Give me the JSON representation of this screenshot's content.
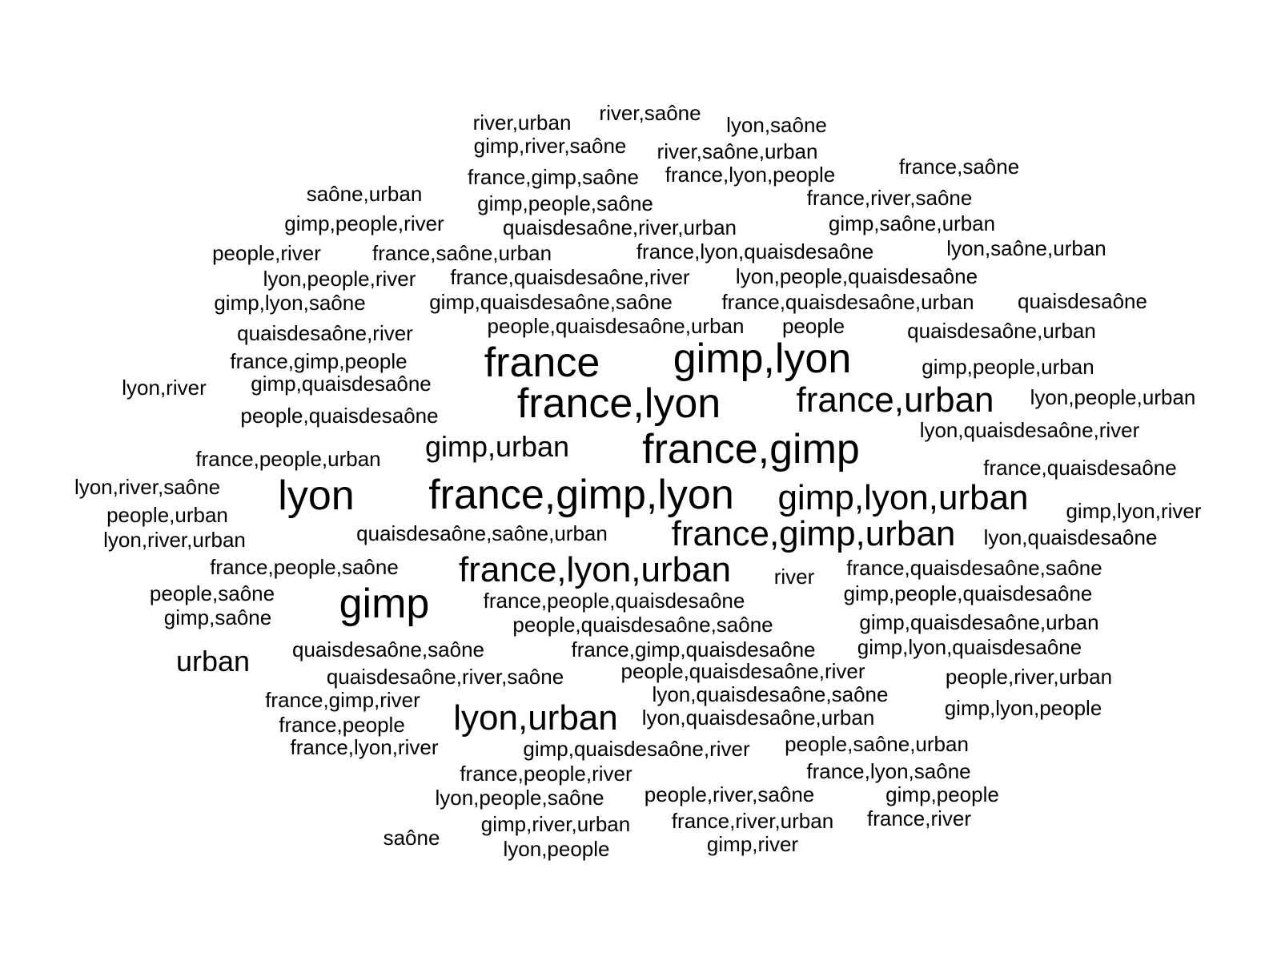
{
  "words": [
    {
      "text": "river,urban",
      "size": 1
    },
    {
      "text": "river,saône",
      "size": 1
    },
    {
      "text": "lyon,saône",
      "size": 1
    },
    {
      "text": "gimp,river,saône",
      "size": 1
    },
    {
      "text": "river,saône,urban",
      "size": 1
    },
    {
      "text": "france,saône",
      "size": 1
    },
    {
      "text": "france,gimp,saône",
      "size": 1
    },
    {
      "text": "france,lyon,people",
      "size": 1
    },
    {
      "text": "saône,urban",
      "size": 1
    },
    {
      "text": "gimp,people,saône",
      "size": 1
    },
    {
      "text": "france,river,saône",
      "size": 1
    },
    {
      "text": "gimp,people,river",
      "size": 1
    },
    {
      "text": "quaisdesaône,river,urban",
      "size": 1
    },
    {
      "text": "gimp,saône,urban",
      "size": 1
    },
    {
      "text": "people,river",
      "size": 1
    },
    {
      "text": "france,saône,urban",
      "size": 1
    },
    {
      "text": "france,lyon,quaisdesaône",
      "size": 1
    },
    {
      "text": "lyon,saône,urban",
      "size": 1
    },
    {
      "text": "lyon,people,river",
      "size": 1
    },
    {
      "text": "france,quaisdesaône,river",
      "size": 1
    },
    {
      "text": "lyon,people,quaisdesaône",
      "size": 1
    },
    {
      "text": "gimp,lyon,saône",
      "size": 1
    },
    {
      "text": "gimp,quaisdesaône,saône",
      "size": 1
    },
    {
      "text": "france,quaisdesaône,urban",
      "size": 1
    },
    {
      "text": "quaisdesaône",
      "size": 1
    },
    {
      "text": "people,quaisdesaône,urban",
      "size": 1
    },
    {
      "text": "people",
      "size": 1
    },
    {
      "text": "quaisdesaône,river",
      "size": 1
    },
    {
      "text": "quaisdesaône,urban",
      "size": 1
    },
    {
      "text": "france",
      "size": 4
    },
    {
      "text": "gimp,lyon",
      "size": 4
    },
    {
      "text": "france,gimp,people",
      "size": 1
    },
    {
      "text": "gimp,people,urban",
      "size": 1
    },
    {
      "text": "lyon,river",
      "size": 1
    },
    {
      "text": "gimp,quaisdesaône",
      "size": 1
    },
    {
      "text": "france,lyon",
      "size": 4
    },
    {
      "text": "france,urban",
      "size": 3
    },
    {
      "text": "lyon,people,urban",
      "size": 1
    },
    {
      "text": "people,quaisdesaône",
      "size": 1
    },
    {
      "text": "lyon,quaisdesaône,river",
      "size": 1
    },
    {
      "text": "gimp,urban",
      "size": 2
    },
    {
      "text": "france,gimp",
      "size": 4
    },
    {
      "text": "france,people,urban",
      "size": 1
    },
    {
      "text": "france,quaisdesaône",
      "size": 1
    },
    {
      "text": "lyon,river,saône",
      "size": 1
    },
    {
      "text": "lyon",
      "size": 4
    },
    {
      "text": "france,gimp,lyon",
      "size": 4
    },
    {
      "text": "gimp,lyon,urban",
      "size": 3
    },
    {
      "text": "gimp,lyon,river",
      "size": 1
    },
    {
      "text": "people,urban",
      "size": 1
    },
    {
      "text": "quaisdesaône,saône,urban",
      "size": 1
    },
    {
      "text": "france,gimp,urban",
      "size": 3
    },
    {
      "text": "lyon,quaisdesaône",
      "size": 1
    },
    {
      "text": "lyon,river,urban",
      "size": 1
    },
    {
      "text": "france,people,saône",
      "size": 1
    },
    {
      "text": "france,lyon,urban",
      "size": 3
    },
    {
      "text": "river",
      "size": 1
    },
    {
      "text": "france,quaisdesaône,saône",
      "size": 1
    },
    {
      "text": "people,saône",
      "size": 1
    },
    {
      "text": "gimp",
      "size": 4
    },
    {
      "text": "france,people,quaisdesaône",
      "size": 1
    },
    {
      "text": "gimp,people,quaisdesaône",
      "size": 1
    },
    {
      "text": "gimp,saône",
      "size": 1
    },
    {
      "text": "people,quaisdesaône,saône",
      "size": 1
    },
    {
      "text": "gimp,quaisdesaône,urban",
      "size": 1
    },
    {
      "text": "urban",
      "size": 2
    },
    {
      "text": "quaisdesaône,saône",
      "size": 1
    },
    {
      "text": "france,gimp,quaisdesaône",
      "size": 1
    },
    {
      "text": "gimp,lyon,quaisdesaône",
      "size": 1
    },
    {
      "text": "quaisdesaône,river,saône",
      "size": 1
    },
    {
      "text": "people,quaisdesaône,river",
      "size": 1
    },
    {
      "text": "people,river,urban",
      "size": 1
    },
    {
      "text": "france,gimp,river",
      "size": 1
    },
    {
      "text": "lyon,quaisdesaône,saône",
      "size": 1
    },
    {
      "text": "lyon,urban",
      "size": 3
    },
    {
      "text": "gimp,lyon,people",
      "size": 1
    },
    {
      "text": "france,people",
      "size": 1
    },
    {
      "text": "lyon,quaisdesaône,urban",
      "size": 1
    },
    {
      "text": "france,lyon,river",
      "size": 1
    },
    {
      "text": "gimp,quaisdesaône,river",
      "size": 1
    },
    {
      "text": "people,saône,urban",
      "size": 1
    },
    {
      "text": "france,people,river",
      "size": 1
    },
    {
      "text": "france,lyon,saône",
      "size": 1
    },
    {
      "text": "lyon,people,saône",
      "size": 1
    },
    {
      "text": "people,river,saône",
      "size": 1
    },
    {
      "text": "gimp,people",
      "size": 1
    },
    {
      "text": "saône",
      "size": 1
    },
    {
      "text": "gimp,river,urban",
      "size": 1
    },
    {
      "text": "france,river,urban",
      "size": 1
    },
    {
      "text": "france,river",
      "size": 1
    },
    {
      "text": "lyon,people",
      "size": 1
    },
    {
      "text": "gimp,river",
      "size": 1
    }
  ]
}
